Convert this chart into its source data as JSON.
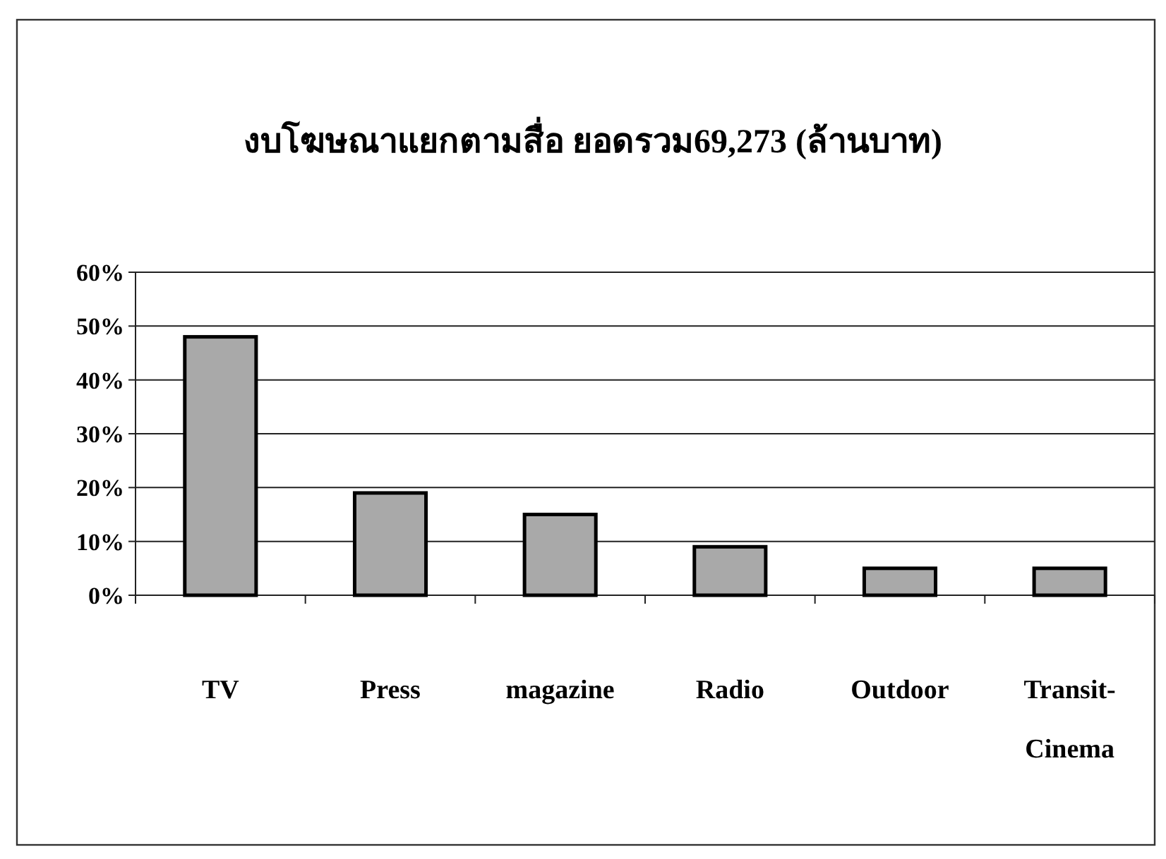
{
  "chart_data": {
    "type": "bar",
    "title": "งบโฆษณาแยกตามสื่อ ยอดรวม69,273 (ล้านบาท)",
    "categories": [
      "TV",
      "Press",
      "magazine",
      "Radio",
      "Outdoor",
      "Transit-Cinema"
    ],
    "values": [
      48,
      19,
      15,
      9,
      5,
      5
    ],
    "color": "#a9a9a9",
    "ylim": [
      0,
      60
    ],
    "yticks": [
      {
        "value": 0,
        "label": "0%"
      },
      {
        "value": 10,
        "label": "10%"
      },
      {
        "value": 20,
        "label": "20%"
      },
      {
        "value": 30,
        "label": "30%"
      },
      {
        "value": 40,
        "label": "40%"
      },
      {
        "value": 50,
        "label": "50%"
      },
      {
        "value": 60,
        "label": "60%"
      }
    ],
    "grid": "y"
  }
}
